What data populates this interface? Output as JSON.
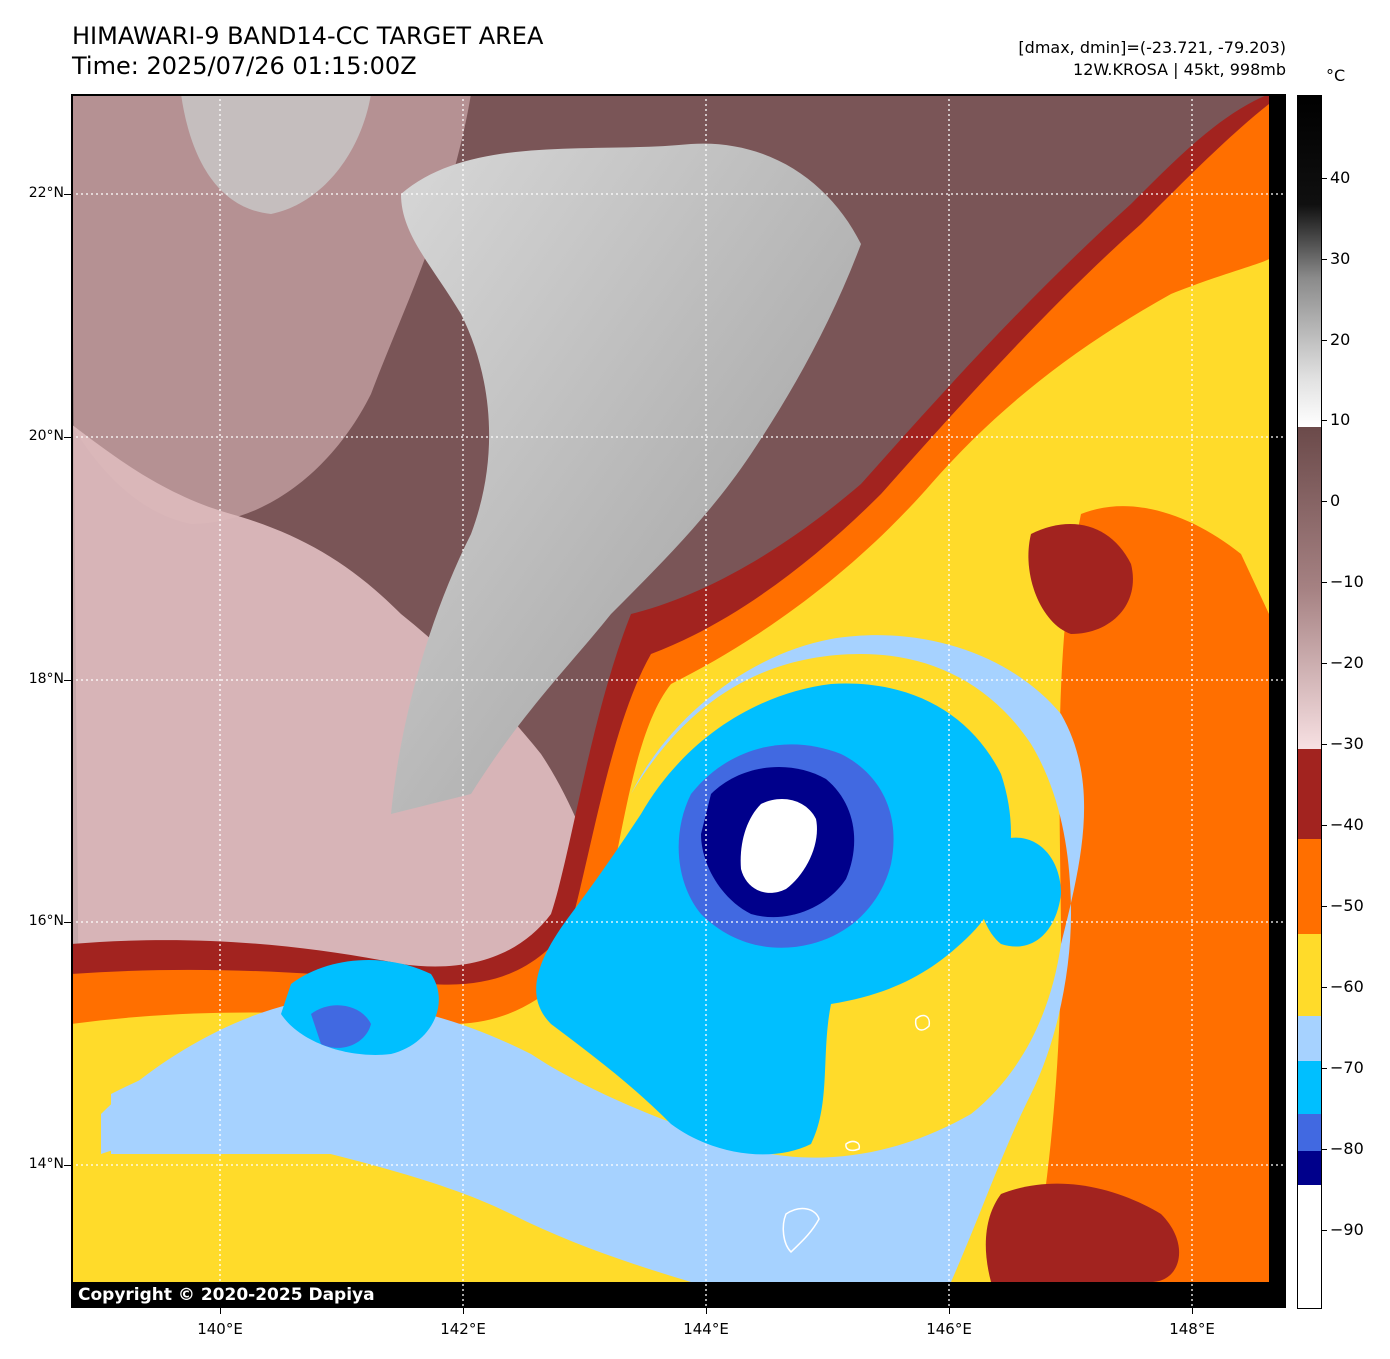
{
  "header": {
    "title_line1": "HIMAWARI-9 BAND14-CC TARGET AREA",
    "title_line2": "Time: 2025/07/26 01:15:00Z",
    "info_line1": "[dmax, dmin]=(-23.721, -79.203)",
    "info_line2": "12W.KROSA | 45kt, 998mb"
  },
  "map": {
    "lat_labels": [
      "22°N",
      "20°N",
      "18°N",
      "16°N",
      "14°N"
    ],
    "lon_labels": [
      "140°E",
      "142°E",
      "144°E",
      "146°E",
      "148°E"
    ],
    "copyright": "Copyright © 2020-2025 Dapiya"
  },
  "colorbar": {
    "unit": "°C",
    "tick_labels": [
      "40",
      "30",
      "20",
      "10",
      "0",
      "−10",
      "−20",
      "−30",
      "−40",
      "−50",
      "−60",
      "−70",
      "−80",
      "−90"
    ],
    "colors": {
      "warm_black": "#000000",
      "gray_white": "#ffffff",
      "brown": "#6b4a4a",
      "pink": "#f3d6d8",
      "dark_red": "#a2231f",
      "orange": "#ff6f00",
      "yellow": "#ffdb2a",
      "light_blue": "#a6d2ff",
      "cyan": "#00bfff",
      "blue": "#4169e1",
      "navy": "#00008b",
      "cold_white": "#ffffff"
    }
  },
  "colors": {
    "grid": "#ffffff",
    "frame": "#000000"
  }
}
